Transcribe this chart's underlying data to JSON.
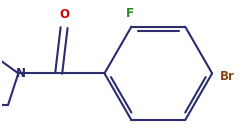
{
  "background_color": "#ffffff",
  "bond_color": "#2b2d6e",
  "atom_label_color_O": "#cc0000",
  "atom_label_color_N": "#2b2d6e",
  "atom_label_color_F": "#228b22",
  "atom_label_color_Br": "#8b4513",
  "line_width": 1.5,
  "font_size": 8.5,
  "fig_width": 2.52,
  "fig_height": 1.36,
  "dpi": 100,
  "xlim": [
    -1.5,
    3.5
  ],
  "ylim": [
    -1.2,
    1.3
  ]
}
